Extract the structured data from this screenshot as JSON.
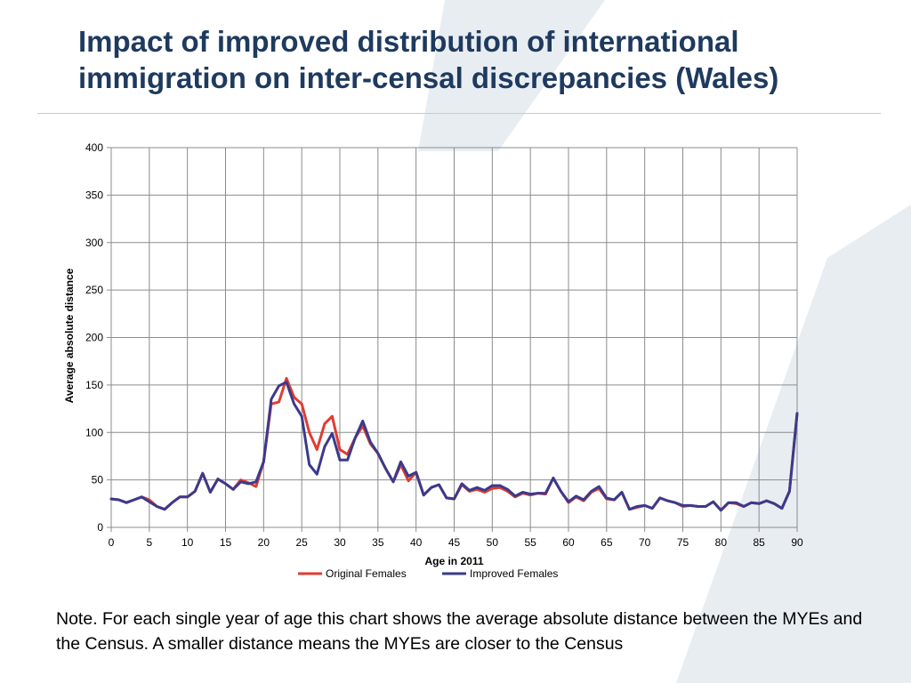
{
  "slide": {
    "title": "Impact of improved distribution of international immigration on inter-censal discrepancies (Wales)",
    "note": "Note. For each single year of age this chart shows the average absolute distance between the MYEs and the Census. A smaller distance means the MYEs are closer to the Census"
  },
  "colors": {
    "title": "#1e3a5f",
    "original": "#e03c31",
    "improved": "#3b3a8c",
    "grid": "#8c8c8c",
    "background_shape": "#d5dfe8"
  },
  "chart_data": {
    "type": "line",
    "xlabel": "Age in 2011",
    "ylabel": "Average absolute distance",
    "xlim": [
      0,
      90
    ],
    "ylim": [
      0,
      400
    ],
    "xticks": [
      0,
      5,
      10,
      15,
      20,
      25,
      30,
      35,
      40,
      45,
      50,
      55,
      60,
      65,
      70,
      75,
      80,
      85,
      90
    ],
    "yticks": [
      0,
      50,
      100,
      150,
      200,
      250,
      300,
      350,
      400
    ],
    "grid": "vertical and horizontal",
    "legend": "bottom",
    "x": [
      0,
      1,
      2,
      3,
      4,
      5,
      6,
      7,
      8,
      9,
      10,
      11,
      12,
      13,
      14,
      15,
      16,
      17,
      18,
      19,
      20,
      21,
      22,
      23,
      24,
      25,
      26,
      27,
      28,
      29,
      30,
      31,
      32,
      33,
      34,
      35,
      36,
      37,
      38,
      39,
      40,
      41,
      42,
      43,
      44,
      45,
      46,
      47,
      48,
      49,
      50,
      51,
      52,
      53,
      54,
      55,
      56,
      57,
      58,
      59,
      60,
      61,
      62,
      63,
      64,
      65,
      66,
      67,
      68,
      69,
      70,
      71,
      72,
      73,
      74,
      75,
      76,
      77,
      78,
      79,
      80,
      81,
      82,
      83,
      84,
      85,
      86,
      87,
      88,
      89,
      90
    ],
    "series": [
      {
        "name": "Original Females",
        "values": [
          30,
          29,
          26,
          29,
          32,
          29,
          22,
          19,
          26,
          32,
          32,
          38,
          57,
          37,
          51,
          46,
          40,
          50,
          47,
          43,
          69,
          130,
          132,
          157,
          137,
          130,
          100,
          82,
          109,
          117,
          82,
          77,
          94,
          107,
          88,
          78,
          62,
          48,
          66,
          49,
          58,
          34,
          42,
          45,
          31,
          30,
          45,
          38,
          40,
          37,
          41,
          42,
          38,
          32,
          36,
          34,
          36,
          35,
          52,
          38,
          26,
          32,
          28,
          37,
          41,
          30,
          29,
          37,
          19,
          21,
          23,
          20,
          31,
          28,
          26,
          22,
          23,
          22,
          22,
          27,
          18,
          26,
          25,
          22,
          26,
          25,
          28,
          25,
          20,
          38,
          120
        ]
      },
      {
        "name": "Improved Females",
        "values": [
          30,
          29,
          26,
          29,
          32,
          27,
          22,
          19,
          26,
          32,
          32,
          38,
          57,
          37,
          51,
          46,
          40,
          48,
          46,
          48,
          69,
          135,
          149,
          153,
          130,
          117,
          66,
          56,
          85,
          99,
          71,
          71,
          94,
          112,
          90,
          78,
          62,
          48,
          69,
          54,
          58,
          34,
          42,
          45,
          31,
          30,
          46,
          39,
          42,
          39,
          44,
          44,
          40,
          33,
          37,
          35,
          36,
          36,
          52,
          38,
          27,
          33,
          29,
          38,
          43,
          31,
          29,
          37,
          19,
          22,
          23,
          20,
          31,
          28,
          26,
          23,
          23,
          22,
          22,
          27,
          18,
          26,
          26,
          22,
          26,
          25,
          28,
          25,
          20,
          38,
          120
        ]
      }
    ]
  }
}
